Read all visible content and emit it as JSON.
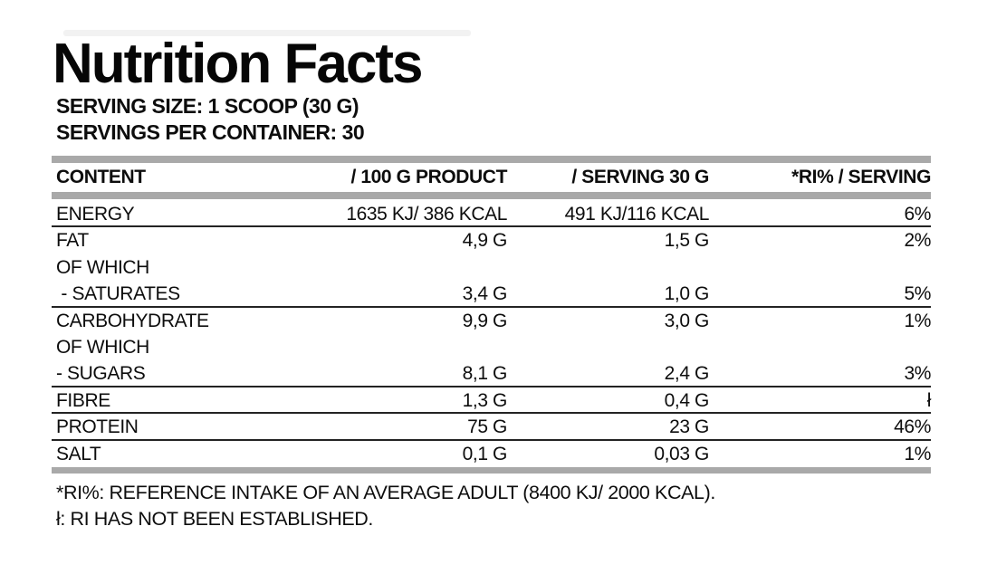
{
  "label": {
    "title": "Nutrition Facts",
    "serving_size": "SERVING SIZE: 1 SCOOP (30 G)",
    "servings_per_container": "SERVINGS PER CONTAINER: 30"
  },
  "table": {
    "headers": {
      "content": "CONTENT",
      "per100": "/ 100 G PRODUCT",
      "serving": "/ SERVING 30 G",
      "ri": "*RI% / SERVING"
    },
    "rows": [
      {
        "name": "ENERGY",
        "per100": "1635 KJ/ 386 KCAL",
        "serving": "491 KJ/116 KCAL",
        "ri": "6%"
      },
      {
        "name": "FAT",
        "per100": "4,9 G",
        "serving": "1,5 G",
        "ri": "2%"
      },
      {
        "name": "OF WHICH",
        "per100": "",
        "serving": "",
        "ri": ""
      },
      {
        "name": " - SATURATES",
        "per100": "3,4 G",
        "serving": "1,0 G",
        "ri": "5%"
      },
      {
        "name": "CARBOHYDRATE",
        "per100": "9,9 G",
        "serving": "3,0 G",
        "ri": "1%"
      },
      {
        "name": "OF WHICH",
        "per100": "",
        "serving": "",
        "ri": ""
      },
      {
        "name": "- SUGARS",
        "per100": "8,1 G",
        "serving": "2,4 G",
        "ri": "3%"
      },
      {
        "name": "FIBRE",
        "per100": "1,3 G",
        "serving": "0,4 G",
        "ri": "ł"
      },
      {
        "name": "PROTEIN",
        "per100": "75 G",
        "serving": "23 G",
        "ri": "46%"
      },
      {
        "name": "SALT",
        "per100": "0,1 G",
        "serving": "0,03 G",
        "ri": "1%"
      }
    ]
  },
  "footnotes": {
    "ri_definition": "*RI%: REFERENCE INTAKE OF AN AVERAGE ADULT (8400 KJ/ 2000 KCAL).",
    "not_established": "ł: RI HAS NOT BEEN ESTABLISHED."
  },
  "colors": {
    "text": "#0d0d0d",
    "bar_gray": "#a9a9a9",
    "rule_black": "#232323",
    "background": "#ffffff"
  }
}
